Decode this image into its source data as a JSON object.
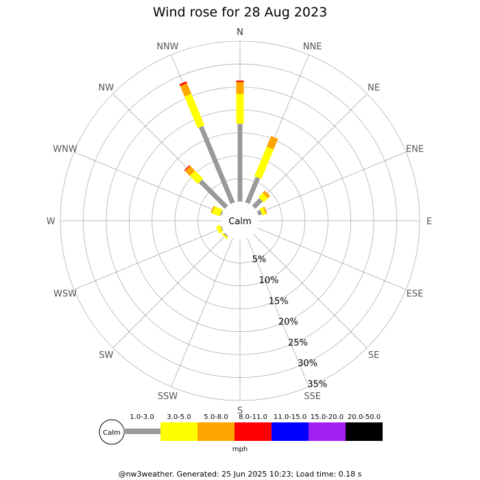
{
  "title": "Wind rose for 28 Aug 2023",
  "footer": "@nw3weather. Generated: 25 Jun 2025 10:23; Load time: 0.18 s",
  "calm_label": "Calm",
  "unit_label": "mph",
  "directions": [
    "N",
    "NNE",
    "NE",
    "ENE",
    "E",
    "ESE",
    "SE",
    "SSE",
    "S",
    "SSW",
    "SW",
    "WSW",
    "W",
    "WNW",
    "NW",
    "NNW"
  ],
  "colors": {
    "grid": "#b0b0b0",
    "spoke": "#555555",
    "text": "#000000",
    "dir_text": "#555555"
  },
  "chart_data": {
    "type": "wind-rose",
    "title": "Wind rose for 28 Aug 2023",
    "radial_ticks": [
      5,
      10,
      15,
      20,
      25,
      30,
      35
    ],
    "radial_tick_labels": [
      "5%",
      "10%",
      "15%",
      "20%",
      "25%",
      "30%",
      "35%"
    ],
    "radial_max": 35,
    "speed_bins": [
      {
        "label": "1.0-3.0",
        "color": "#999999"
      },
      {
        "label": "3.0-5.0",
        "color": "#ffff00"
      },
      {
        "label": "5.0-8.0",
        "color": "#ffa500"
      },
      {
        "label": "8.0-11.0",
        "color": "#ff0000"
      },
      {
        "label": "11.0-15.0",
        "color": "#0000ff"
      },
      {
        "label": "15.0-20.0",
        "color": "#a020f0"
      },
      {
        "label": "20.0-50.0",
        "color": "#000000"
      }
    ],
    "series": [
      {
        "direction": "N",
        "values": [
          17.0,
          6.5,
          2.6,
          0.3,
          0,
          0,
          0
        ]
      },
      {
        "direction": "NNE",
        "values": [
          6.0,
          7.0,
          2.5,
          0,
          0,
          0,
          0
        ]
      },
      {
        "direction": "NE",
        "values": [
          2.3,
          1.3,
          0.7,
          0,
          0,
          0,
          0
        ]
      },
      {
        "direction": "ENE",
        "values": [
          0.8,
          0.8,
          0.3,
          0,
          0,
          0,
          0
        ]
      },
      {
        "direction": "E",
        "values": [
          0,
          0,
          0,
          0,
          0,
          0,
          0
        ]
      },
      {
        "direction": "ESE",
        "values": [
          0,
          0,
          0,
          0,
          0,
          0,
          0
        ]
      },
      {
        "direction": "SE",
        "values": [
          0,
          0,
          0,
          0,
          0,
          0,
          0
        ]
      },
      {
        "direction": "SSE",
        "values": [
          0,
          0,
          0,
          0,
          0,
          0,
          0
        ]
      },
      {
        "direction": "S",
        "values": [
          0,
          0,
          0,
          0,
          0,
          0,
          0
        ]
      },
      {
        "direction": "SSW",
        "values": [
          0,
          0,
          0,
          0,
          0,
          0,
          0
        ]
      },
      {
        "direction": "SW",
        "values": [
          0.3,
          0.4,
          0,
          0,
          0,
          0,
          0
        ]
      },
      {
        "direction": "WSW",
        "values": [
          0.2,
          0.9,
          0,
          0,
          0,
          0,
          0
        ]
      },
      {
        "direction": "W",
        "values": [
          0,
          0,
          0,
          0,
          0,
          0,
          0
        ]
      },
      {
        "direction": "WNW",
        "values": [
          0.3,
          1.8,
          0.3,
          0,
          0,
          0,
          0
        ]
      },
      {
        "direction": "NW",
        "values": [
          8.0,
          2.5,
          1.5,
          0.2,
          0,
          0,
          0
        ]
      },
      {
        "direction": "NNW",
        "values": [
          18.0,
          7.5,
          2.5,
          0.4,
          0,
          0,
          0
        ]
      }
    ]
  }
}
